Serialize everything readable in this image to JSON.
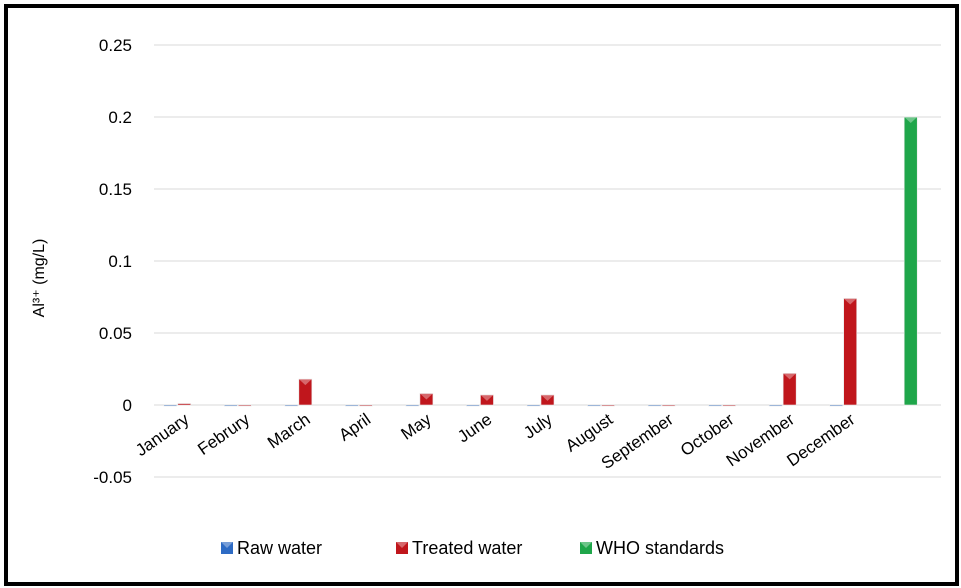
{
  "chart_data": {
    "type": "bar",
    "title": "",
    "xlabel": "",
    "ylabel": "Al³⁺ (mg/L)",
    "categories": [
      "January",
      "Februry",
      "March",
      "April",
      "May",
      "June",
      "July",
      "August",
      "September",
      "October",
      "November",
      "December",
      ""
    ],
    "series": [
      {
        "name": "Raw water",
        "color": "#2E6BC4",
        "values": [
          0,
          0,
          0,
          0,
          0,
          0,
          0,
          0,
          0,
          0,
          0,
          0,
          null
        ]
      },
      {
        "name": "Treated water",
        "color": "#C0161C",
        "values": [
          0.001,
          0,
          0.018,
          0,
          0.008,
          0.007,
          0.007,
          0,
          0,
          0,
          0.022,
          0.074,
          null
        ]
      },
      {
        "name": "WHO standards",
        "color": "#1FA64A",
        "values": [
          null,
          null,
          null,
          null,
          null,
          null,
          null,
          null,
          null,
          null,
          null,
          null,
          0.2
        ]
      }
    ],
    "ylim": [
      -0.05,
      0.25
    ],
    "yticks": [
      -0.05,
      0,
      0.05,
      0.1,
      0.15,
      0.2,
      0.25
    ],
    "ytick_labels": [
      "-0.05",
      "0",
      "0.05",
      "0.1",
      "0.15",
      "0.2",
      "0.25"
    ],
    "grid": true,
    "legend_position": "bottom"
  }
}
